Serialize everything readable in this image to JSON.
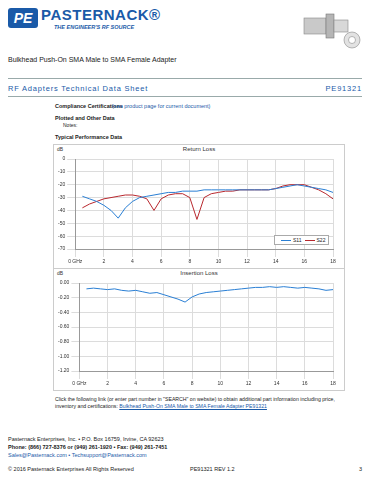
{
  "header": {
    "logo_mark": "PE",
    "logo_name": "PASTERNACK®",
    "logo_tagline": "THE ENGINEER'S RF SOURCE",
    "product_title": "Bulkhead Push-On SMA Male to SMA Female Adapter"
  },
  "section_bar": {
    "left": "RF Adapters Technical Data Sheet",
    "right": "PE91321"
  },
  "compliance": {
    "label": "Compliance Certifications",
    "note": "(see product page for current document)"
  },
  "plotted": {
    "heading": "Plotted and Other Data",
    "notes": "Notes:"
  },
  "typical_heading": "Typical Performance Data",
  "chart_data": [
    {
      "type": "line",
      "title": "Return Loss",
      "y_label": "dB",
      "x": [
        0.5,
        1,
        1.5,
        2,
        2.5,
        3,
        3.5,
        4,
        4.5,
        5,
        5.5,
        6,
        6.5,
        7,
        7.5,
        8,
        8.5,
        9,
        9.5,
        10,
        10.5,
        11,
        11.5,
        12,
        12.5,
        13,
        13.5,
        14,
        14.5,
        15,
        15.5,
        16,
        16.5,
        17,
        17.5,
        18
      ],
      "series": [
        {
          "name": "S11",
          "color": "#2a7fd4",
          "values": [
            -29,
            -31,
            -33,
            -36,
            -40,
            -46,
            -38,
            -33,
            -30,
            -29,
            -28,
            -27,
            -26,
            -26,
            -25,
            -25,
            -25,
            -24,
            -24,
            -24,
            -24,
            -24,
            -24,
            -24,
            -24,
            -24,
            -24,
            -23,
            -22,
            -21,
            -20,
            -21,
            -22,
            -23,
            -24,
            -26
          ]
        },
        {
          "name": "S22",
          "color": "#b8282e",
          "values": [
            -38,
            -35,
            -33,
            -31,
            -30,
            -29,
            -28,
            -28,
            -29,
            -31,
            -40,
            -31,
            -28,
            -27,
            -27,
            -30,
            -47,
            -30,
            -27,
            -26,
            -25,
            -25,
            -24,
            -24,
            -24,
            -24,
            -24,
            -23,
            -21,
            -20,
            -20,
            -20,
            -22,
            -24,
            -27,
            -31
          ]
        }
      ],
      "xlim": [
        0,
        18
      ],
      "xticks": [
        {
          "value": 0,
          "label": "0 GHz"
        },
        2,
        4,
        6,
        8,
        10,
        12,
        14,
        16,
        18
      ],
      "ylim": [
        -70,
        0
      ],
      "yticks": [
        0,
        -10,
        -20,
        -30,
        -40,
        -50,
        -60,
        -70
      ],
      "grid": true,
      "legend": "lower right"
    },
    {
      "type": "line",
      "title": "Insertion Loss",
      "y_label": "dB",
      "x": [
        0.5,
        1,
        1.5,
        2,
        2.5,
        3,
        3.5,
        4,
        4.5,
        5,
        5.5,
        6,
        6.5,
        7,
        7.5,
        8,
        8.5,
        9,
        9.5,
        10,
        10.5,
        11,
        11.5,
        12,
        12.5,
        13,
        13.5,
        14,
        14.5,
        15,
        15.5,
        16,
        16.5,
        17,
        17.5,
        18
      ],
      "values": [
        -0.08,
        -0.07,
        -0.08,
        -0.09,
        -0.08,
        -0.1,
        -0.11,
        -0.1,
        -0.12,
        -0.14,
        -0.13,
        -0.16,
        -0.19,
        -0.22,
        -0.26,
        -0.19,
        -0.15,
        -0.13,
        -0.12,
        -0.11,
        -0.1,
        -0.09,
        -0.08,
        -0.07,
        -0.06,
        -0.06,
        -0.05,
        -0.06,
        -0.05,
        -0.06,
        -0.07,
        -0.06,
        -0.07,
        -0.08,
        -0.1,
        -0.09
      ],
      "color": "#2a7fd4",
      "xlim": [
        0,
        18
      ],
      "xticks": [
        {
          "value": 0,
          "label": "0 GHz"
        },
        2,
        4,
        6,
        8,
        10,
        12,
        14,
        16,
        18
      ],
      "ylim": [
        -1.2,
        0
      ],
      "yticks": [
        {
          "value": 0,
          "label": "0.00"
        },
        {
          "value": -0.2,
          "label": "-0.20"
        },
        {
          "value": -0.4,
          "label": "-0.40"
        },
        {
          "value": -0.6,
          "label": "-0.60"
        },
        {
          "value": -0.8,
          "label": "-0.80"
        },
        {
          "value": -1.0,
          "label": "-1.00"
        },
        {
          "value": -1.2,
          "label": "-1.20"
        }
      ],
      "grid": true
    }
  ],
  "link_paragraph": {
    "text": "Click the following link (or enter part number in \"SEARCH\" on website) to obtain additional part information including price, inventory and certifications: ",
    "link": "Bulkhead Push-On SMA Male to SMA Female Adapter PE91321"
  },
  "footer": {
    "address": "Pasternack Enterprises, Inc. • P.O. Box 16759, Irvine, CA 92623",
    "phone": "Phone: (866) 727-8376 or (949) 261-1920 • Fax: (949) 261-7451",
    "email": "Sales@Pasternack.com • Techsupport@Pasternack.com",
    "copyright": "© 2016 Pasternack Enterprises All Rights Reserved",
    "revision": "PE91321 REV 1.2",
    "page": "3"
  }
}
